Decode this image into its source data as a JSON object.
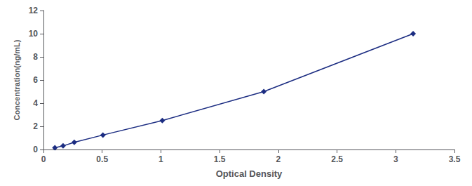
{
  "chart_data": {
    "type": "line",
    "xlabel": "Optical Density",
    "ylabel": "Concentration(ng/mL)",
    "x": [
      0.097,
      0.167,
      0.262,
      0.506,
      1.012,
      1.876,
      3.148
    ],
    "values": [
      0.156,
      0.312,
      0.625,
      1.25,
      2.5,
      5.0,
      10.0
    ],
    "color": "#1c2d82",
    "marker": "diamond",
    "xlim": [
      0,
      3.5
    ],
    "ylim": [
      0,
      12
    ],
    "xticks": [
      0,
      0.5,
      1,
      1.5,
      2,
      2.5,
      3,
      3.5
    ],
    "yticks": [
      0,
      2,
      4,
      6,
      8,
      10,
      12
    ],
    "grid": false
  }
}
